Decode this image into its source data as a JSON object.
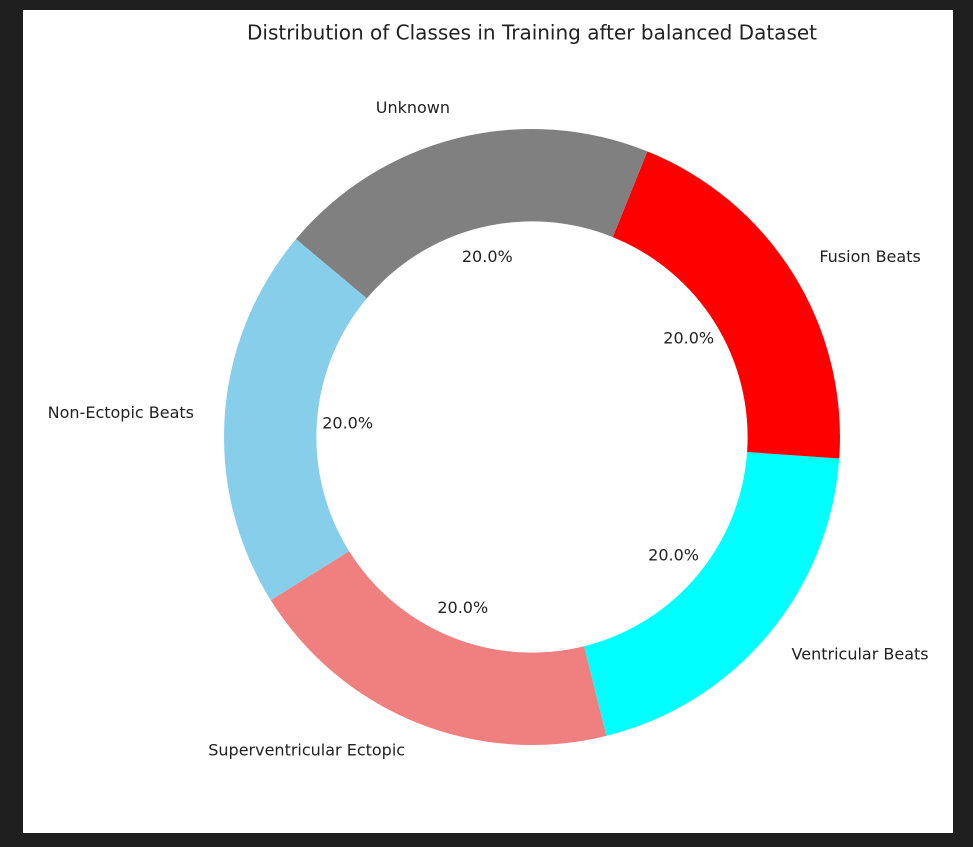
{
  "chart_data": {
    "type": "donut",
    "title": "Distribution of Classes in Training after balanced Dataset",
    "categories": [
      "Non-Ectopic Beats",
      "Superventricular Ectopic",
      "Ventricular Beats",
      "Fusion Beats",
      "Unknown"
    ],
    "values": [
      20,
      20,
      20,
      20,
      20
    ],
    "value_labels": [
      "20.0%",
      "20.0%",
      "20.0%",
      "20.0%",
      "20.0%"
    ],
    "colors": [
      "#87ceeb",
      "#f08080",
      "#00ffff",
      "#ff0000",
      "#808080"
    ],
    "startangle": 140
  }
}
